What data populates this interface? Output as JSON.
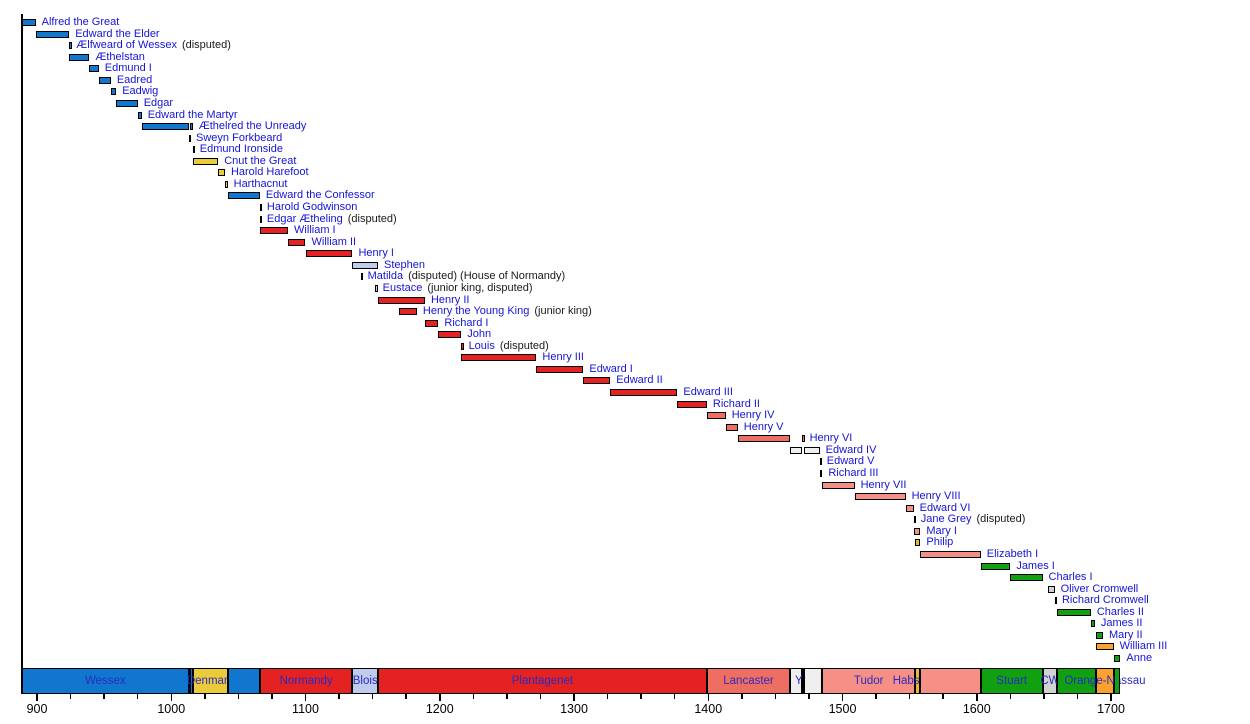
{
  "chart_data": {
    "type": "timeline",
    "x_axis": {
      "domain": [
        889,
        1707
      ],
      "major_ticks": [
        900,
        1000,
        1100,
        1200,
        1300,
        1400,
        1500,
        1600,
        1700
      ],
      "minor_tick_step": 25,
      "tick_labels": [
        "900",
        "1000",
        "1100",
        "1200",
        "1300",
        "1400",
        "1500",
        "1600",
        "1700"
      ]
    },
    "colors": {
      "Wessex": "#1176CE",
      "Denmark": "#EACB3C",
      "Normandy": "#E42222",
      "Blois": "#C0CCEE",
      "Plantagenet": "#E42222",
      "Lancaster": "#EE6E62",
      "York": "#EFEFEF",
      "Tudor": "#F68F85",
      "Habsburg": "#E3BC2F",
      "Stuart": "#10A010",
      "Commonwealth": "#D2D2D2",
      "Orange-Nassau": "#FBA22E",
      "name_text": "#1414D6",
      "annotation_text": "#1a1a1a",
      "house_label_text": "#2B2BC0",
      "axis_text": "#000000"
    },
    "monarchs": [
      {
        "name": "Alfred the Great",
        "house": "Wessex",
        "segments": [
          [
            871,
            899
          ]
        ]
      },
      {
        "name": "Edward the Elder",
        "house": "Wessex",
        "segments": [
          [
            899,
            924
          ]
        ]
      },
      {
        "name": "Ælfweard of Wessex",
        "suffix": "(disputed)",
        "house": "Wessex",
        "segments": [
          [
            924,
            924.8
          ]
        ]
      },
      {
        "name": "Æthelstan",
        "house": "Wessex",
        "segments": [
          [
            924,
            939
          ]
        ]
      },
      {
        "name": "Edmund I",
        "house": "Wessex",
        "segments": [
          [
            939,
            946
          ]
        ]
      },
      {
        "name": "Eadred",
        "house": "Wessex",
        "segments": [
          [
            946,
            955
          ]
        ]
      },
      {
        "name": "Eadwig",
        "house": "Wessex",
        "segments": [
          [
            955,
            959
          ]
        ]
      },
      {
        "name": "Edgar",
        "house": "Wessex",
        "segments": [
          [
            959,
            975
          ]
        ]
      },
      {
        "name": "Edward the Martyr",
        "house": "Wessex",
        "segments": [
          [
            975,
            978
          ]
        ]
      },
      {
        "name": "Æthelred the Unready",
        "house": "Wessex",
        "segments": [
          [
            978,
            1013
          ],
          [
            1014,
            1016
          ]
        ]
      },
      {
        "name": "Sweyn Forkbeard",
        "house": "Denmark",
        "segments": [
          [
            1013,
            1014
          ]
        ]
      },
      {
        "name": "Edmund Ironside",
        "house": "Wessex",
        "segments": [
          [
            1016,
            1016.8
          ]
        ]
      },
      {
        "name": "Cnut the Great",
        "house": "Denmark",
        "segments": [
          [
            1016,
            1035
          ]
        ]
      },
      {
        "name": "Harold Harefoot",
        "house": "Denmark",
        "segments": [
          [
            1035,
            1040
          ]
        ]
      },
      {
        "name": "Harthacnut",
        "house": "Denmark",
        "segments": [
          [
            1040,
            1042
          ]
        ]
      },
      {
        "name": "Edward the Confessor",
        "house": "Wessex",
        "segments": [
          [
            1042,
            1066
          ]
        ]
      },
      {
        "name": "Harold Godwinson",
        "house": "Wessex",
        "segments": [
          [
            1066,
            1066.8
          ]
        ]
      },
      {
        "name": "Edgar Ætheling",
        "suffix": "(disputed)",
        "house": "Wessex",
        "segments": [
          [
            1066,
            1066.8
          ]
        ]
      },
      {
        "name": "William I",
        "house": "Normandy",
        "segments": [
          [
            1066,
            1087
          ]
        ]
      },
      {
        "name": "William II",
        "house": "Normandy",
        "segments": [
          [
            1087,
            1100
          ]
        ]
      },
      {
        "name": "Henry I",
        "house": "Normandy",
        "segments": [
          [
            1100,
            1135
          ]
        ]
      },
      {
        "name": "Stephen",
        "house": "Blois",
        "segments": [
          [
            1135,
            1154
          ]
        ]
      },
      {
        "name": "Matilda",
        "suffix": "(disputed) (House of Normandy)",
        "house": "Normandy",
        "segments": [
          [
            1141,
            1141.8
          ]
        ]
      },
      {
        "name": "Eustace",
        "suffix": "(junior king, disputed)",
        "house": "Blois",
        "segments": [
          [
            1152,
            1153
          ]
        ]
      },
      {
        "name": "Henry II",
        "house": "Plantagenet",
        "segments": [
          [
            1154,
            1189
          ]
        ]
      },
      {
        "name": "Henry the Young King",
        "suffix": "(junior king)",
        "house": "Plantagenet",
        "segments": [
          [
            1170,
            1183
          ]
        ]
      },
      {
        "name": "Richard I",
        "house": "Plantagenet",
        "segments": [
          [
            1189,
            1199
          ]
        ]
      },
      {
        "name": "John",
        "house": "Plantagenet",
        "segments": [
          [
            1199,
            1216
          ]
        ]
      },
      {
        "name": "Louis",
        "suffix": "(disputed)",
        "house": "Plantagenet",
        "segments": [
          [
            1216,
            1217
          ]
        ]
      },
      {
        "name": "Henry III",
        "house": "Plantagenet",
        "segments": [
          [
            1216,
            1272
          ]
        ]
      },
      {
        "name": "Edward I",
        "house": "Plantagenet",
        "segments": [
          [
            1272,
            1307
          ]
        ]
      },
      {
        "name": "Edward II",
        "house": "Plantagenet",
        "segments": [
          [
            1307,
            1327
          ]
        ]
      },
      {
        "name": "Edward III",
        "house": "Plantagenet",
        "segments": [
          [
            1327,
            1377
          ]
        ]
      },
      {
        "name": "Richard II",
        "house": "Plantagenet",
        "segments": [
          [
            1377,
            1399
          ]
        ]
      },
      {
        "name": "Henry IV",
        "house": "Lancaster",
        "segments": [
          [
            1399,
            1413
          ]
        ]
      },
      {
        "name": "Henry V",
        "house": "Lancaster",
        "segments": [
          [
            1413,
            1422
          ]
        ]
      },
      {
        "name": "Henry VI",
        "house": "Lancaster",
        "segments": [
          [
            1422,
            1461
          ],
          [
            1470,
            1471
          ]
        ]
      },
      {
        "name": "Edward IV",
        "house": "York",
        "segments": [
          [
            1461,
            1470
          ],
          [
            1471,
            1483
          ]
        ]
      },
      {
        "name": "Edward V",
        "house": "York",
        "segments": [
          [
            1483,
            1483.8
          ]
        ]
      },
      {
        "name": "Richard III",
        "house": "York",
        "segments": [
          [
            1483,
            1485
          ]
        ]
      },
      {
        "name": "Henry VII",
        "house": "Tudor",
        "segments": [
          [
            1485,
            1509
          ]
        ]
      },
      {
        "name": "Henry VIII",
        "house": "Tudor",
        "segments": [
          [
            1509,
            1547
          ]
        ]
      },
      {
        "name": "Edward VI",
        "house": "Tudor",
        "segments": [
          [
            1547,
            1553
          ]
        ]
      },
      {
        "name": "Jane Grey",
        "suffix": "(disputed)",
        "house": "Tudor",
        "segments": [
          [
            1553,
            1553.8
          ]
        ]
      },
      {
        "name": "Mary I",
        "house": "Tudor",
        "segments": [
          [
            1553,
            1558
          ]
        ]
      },
      {
        "name": "Philip",
        "house": "Habsburg",
        "segments": [
          [
            1554,
            1558
          ]
        ]
      },
      {
        "name": "Elizabeth I",
        "house": "Tudor",
        "segments": [
          [
            1558,
            1603
          ]
        ]
      },
      {
        "name": "James I",
        "house": "Stuart",
        "segments": [
          [
            1603,
            1625
          ]
        ]
      },
      {
        "name": "Charles I",
        "house": "Stuart",
        "segments": [
          [
            1625,
            1649
          ]
        ]
      },
      {
        "name": "Oliver Cromwell",
        "house": "Commonwealth",
        "segments": [
          [
            1653,
            1658
          ]
        ]
      },
      {
        "name": "Richard Cromwell",
        "house": "Commonwealth",
        "segments": [
          [
            1658,
            1659
          ]
        ]
      },
      {
        "name": "Charles II",
        "house": "Stuart",
        "segments": [
          [
            1660,
            1685
          ]
        ]
      },
      {
        "name": "James II",
        "house": "Stuart",
        "segments": [
          [
            1685,
            1688
          ]
        ]
      },
      {
        "name": "Mary II",
        "house": "Stuart",
        "segments": [
          [
            1689,
            1694
          ]
        ]
      },
      {
        "name": "William III",
        "house": "Orange-Nassau",
        "segments": [
          [
            1689,
            1702
          ]
        ]
      },
      {
        "name": "Anne",
        "house": "Stuart",
        "segments": [
          [
            1702,
            1707
          ]
        ]
      }
    ],
    "house_bar": [
      {
        "house": "Wessex",
        "start": 871,
        "end": 1013,
        "label": "Wessex"
      },
      {
        "house": "Denmark",
        "start": 1013,
        "end": 1014
      },
      {
        "house": "Wessex",
        "start": 1014,
        "end": 1016
      },
      {
        "house": "Denmark",
        "start": 1016,
        "end": 1042,
        "label": "Denmark"
      },
      {
        "house": "Wessex",
        "start": 1042,
        "end": 1066
      },
      {
        "house": "Normandy",
        "start": 1066,
        "end": 1135,
        "label": "Normandy"
      },
      {
        "house": "Blois",
        "start": 1135,
        "end": 1154,
        "label": "Blois"
      },
      {
        "house": "Plantagenet",
        "start": 1154,
        "end": 1399,
        "label": "Plantagenet"
      },
      {
        "house": "Lancaster",
        "start": 1399,
        "end": 1461,
        "label": "Lancaster"
      },
      {
        "house": "York",
        "start": 1461,
        "end": 1470,
        "label": "York",
        "label_year": 1473
      },
      {
        "house": "Lancaster",
        "start": 1470,
        "end": 1471
      },
      {
        "house": "York",
        "start": 1471,
        "end": 1485
      },
      {
        "house": "Tudor",
        "start": 1485,
        "end": 1554,
        "label": "Tudor"
      },
      {
        "house": "Habsburg",
        "start": 1554,
        "end": 1558,
        "label": "Habsburg"
      },
      {
        "house": "Tudor",
        "start": 1558,
        "end": 1603
      },
      {
        "house": "Stuart",
        "start": 1603,
        "end": 1649,
        "label": "Stuart"
      },
      {
        "house": "Commonwealth",
        "start": 1649,
        "end": 1660,
        "label": "CW"
      },
      {
        "house": "Stuart",
        "start": 1660,
        "end": 1689
      },
      {
        "house": "Orange-Nassau",
        "start": 1689,
        "end": 1702,
        "label": "Orange-Nassau"
      },
      {
        "house": "Stuart",
        "start": 1702,
        "end": 1707
      }
    ]
  }
}
